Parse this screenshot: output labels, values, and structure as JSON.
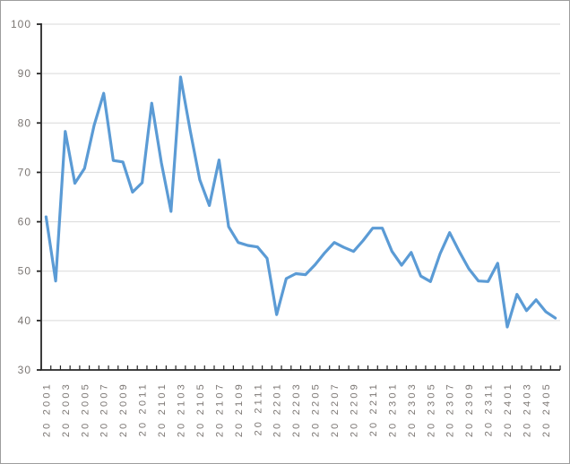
{
  "chart": {
    "title": "",
    "style": {
      "background": "#ffffff",
      "frame_border_color": "#9d9d9d",
      "line_color": "#5b9bd5",
      "gridline_color": "#d9d9d9",
      "axis_color": "#262626",
      "label_color": "#7b7673"
    },
    "y_axis": {
      "min": 30,
      "max": 100,
      "step": 10,
      "tick_labels": [
        "100",
        "90",
        "80",
        "70",
        "60",
        "50",
        "40",
        "30"
      ]
    },
    "x_axis": {
      "tick_labels": [
        "20 2001",
        "20 2003",
        "20 2005",
        "20 2007",
        "20 2009",
        "20 2011",
        "20 2101",
        "20 2103",
        "20 2105",
        "20 2107",
        "20 2109",
        "20 2111",
        "20 2201",
        "20 2203",
        "20 2205",
        "20 2207",
        "20 2209",
        "20 2211",
        "20 2301",
        "20 2303",
        "20 2305",
        "20 2307",
        "20 2309",
        "20 2311",
        "20 2401",
        "20 2403",
        "20 2405"
      ]
    }
  },
  "chart_data": {
    "type": "line",
    "title": "",
    "xlabel": "",
    "ylabel": "",
    "ylim": [
      30,
      100
    ],
    "grid": true,
    "legend_position": "none",
    "x": [
      "202001",
      "202002",
      "202003",
      "202004",
      "202005",
      "202006",
      "202007",
      "202008",
      "202009",
      "202010",
      "202011",
      "202012",
      "202101",
      "202102",
      "202103",
      "202104",
      "202105",
      "202106",
      "202107",
      "202108",
      "202109",
      "202110",
      "202111",
      "202112",
      "202201",
      "202202",
      "202203",
      "202204",
      "202205",
      "202206",
      "202207",
      "202208",
      "202209",
      "202210",
      "202211",
      "202212",
      "202301",
      "202302",
      "202303",
      "202304",
      "202305",
      "202306",
      "202307",
      "202308",
      "202309",
      "202310",
      "202311",
      "202312",
      "202401",
      "202402",
      "202403",
      "202404",
      "202405",
      "202406"
    ],
    "series": [
      {
        "name": "series-1",
        "color": "#5b9bd5",
        "values": [
          61.0,
          48.0,
          78.3,
          67.8,
          70.8,
          79.5,
          86.0,
          72.4,
          72.1,
          66.0,
          67.9,
          84.0,
          72.0,
          62.1,
          89.3,
          78.5,
          68.5,
          63.3,
          72.5,
          59.0,
          55.8,
          55.2,
          54.9,
          52.6,
          41.2,
          48.5,
          49.5,
          49.3,
          51.3,
          53.7,
          55.8,
          54.8,
          54.0,
          56.2,
          58.7,
          58.7,
          54.0,
          51.2,
          53.8,
          49.0,
          47.9,
          53.5,
          57.8,
          54.0,
          50.5,
          48.0,
          47.9,
          51.6,
          38.7,
          45.3,
          42.0,
          44.2,
          41.8,
          40.5
        ]
      }
    ]
  }
}
